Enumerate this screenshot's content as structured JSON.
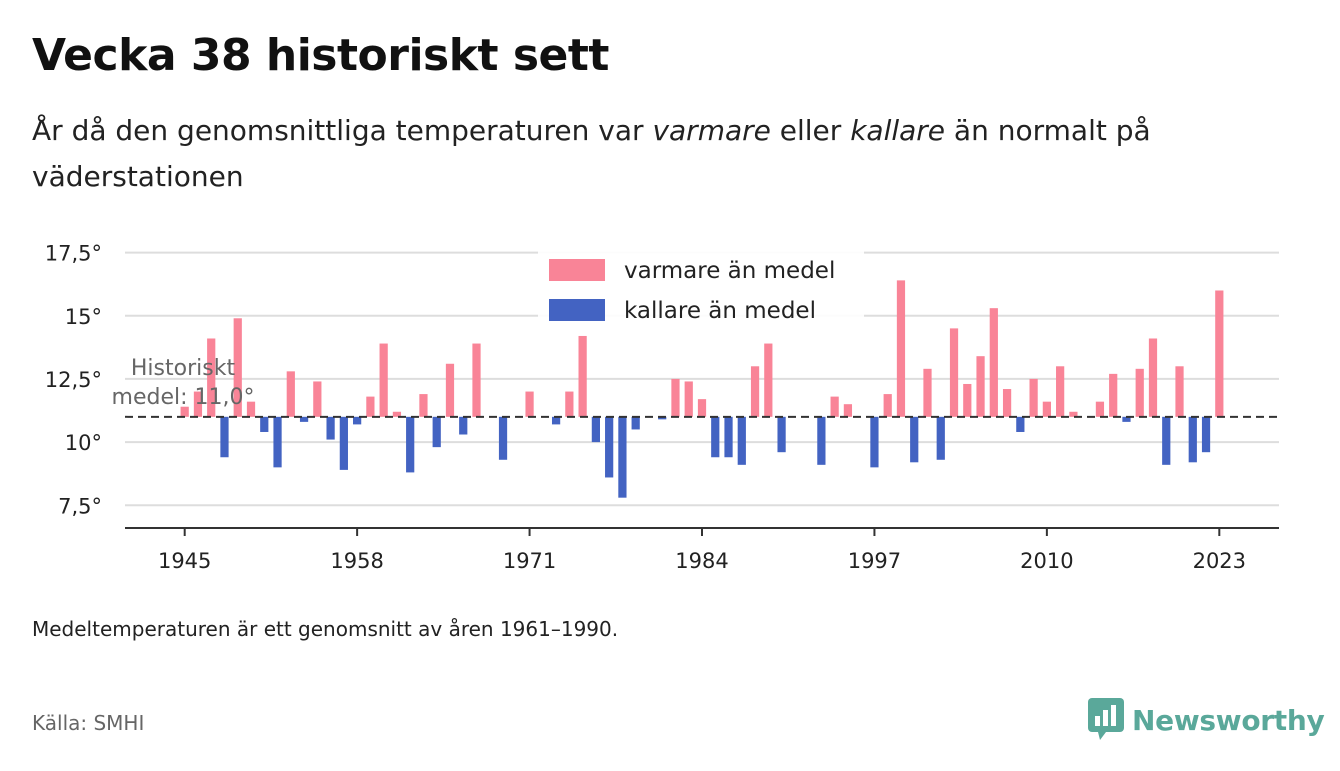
{
  "title": "Vecka 38 historiskt sett",
  "subtitle": {
    "part1": "År då den genomsnittliga temperaturen var ",
    "warm_word": "varmare",
    "part2": " eller ",
    "cold_word": "kallare",
    "part3": " än normalt på väderstationen"
  },
  "note": "Medeltemperaturen är ett genomsnitt av åren 1961–1990.",
  "source": "Källa: SMHI",
  "logo": {
    "text": "Newsworthy",
    "icon": "newsworthy-logo-icon"
  },
  "colors": {
    "warm": "#f98497",
    "cold": "#4363c2",
    "grid": "#dddddd",
    "baseline": "#333333",
    "annotation": "#666666",
    "logo": "#5aa89a"
  },
  "chart_data": {
    "type": "bar",
    "baseline": 11.0,
    "baseline_label_line1": "Historiskt",
    "baseline_label_line2": "medel: 11,0°",
    "ylim": [
      6.6,
      17.8
    ],
    "xlim": [
      1940.5,
      2027.5
    ],
    "y_ticks": [
      7.5,
      10,
      12.5,
      15,
      17.5
    ],
    "y_tick_labels": [
      "7,5°",
      "10°",
      "12,5°",
      "15°",
      "17,5°"
    ],
    "x_ticks": [
      1945,
      1958,
      1971,
      1984,
      1997,
      2010,
      2023
    ],
    "x_tick_labels": [
      "1945",
      "1958",
      "1971",
      "1984",
      "1997",
      "2010",
      "2023"
    ],
    "legend": {
      "placement": "top-center",
      "warm_label": "varmare än medel",
      "cold_label": "kallare än medel"
    },
    "series_names": [
      "varmare än medel",
      "kallare än medel"
    ],
    "years": [
      1945,
      1946,
      1947,
      1948,
      1949,
      1950,
      1951,
      1952,
      1953,
      1954,
      1955,
      1956,
      1957,
      1958,
      1959,
      1960,
      1961,
      1962,
      1963,
      1964,
      1965,
      1966,
      1967,
      1968,
      1969,
      1970,
      1971,
      1972,
      1973,
      1974,
      1975,
      1976,
      1977,
      1978,
      1979,
      1980,
      1981,
      1982,
      1983,
      1984,
      1985,
      1986,
      1987,
      1988,
      1989,
      1990,
      1991,
      1992,
      1993,
      1994,
      1995,
      1996,
      1997,
      1998,
      1999,
      2000,
      2001,
      2002,
      2003,
      2004,
      2005,
      2006,
      2007,
      2008,
      2009,
      2010,
      2011,
      2012,
      2013,
      2014,
      2015,
      2016,
      2017,
      2018,
      2019,
      2020,
      2021,
      2022,
      2023
    ],
    "values": [
      11.4,
      12.0,
      14.1,
      9.4,
      14.9,
      11.6,
      10.4,
      9.0,
      12.8,
      10.8,
      12.4,
      10.1,
      8.9,
      10.7,
      11.8,
      13.9,
      11.2,
      8.8,
      11.9,
      9.8,
      13.1,
      10.3,
      13.9,
      11.0,
      9.3,
      11.0,
      12.0,
      11.0,
      10.7,
      12.0,
      14.2,
      10.0,
      8.6,
      7.8,
      10.5,
      11.0,
      10.9,
      12.5,
      12.4,
      11.7,
      9.4,
      9.4,
      9.1,
      13.0,
      13.9,
      9.6,
      11.0,
      11.0,
      9.1,
      11.8,
      11.5,
      11.0,
      9.0,
      11.9,
      16.4,
      9.2,
      12.9,
      9.3,
      14.5,
      12.3,
      13.4,
      15.3,
      12.1,
      10.4,
      12.5,
      11.6,
      13.0,
      11.2,
      11.0,
      11.6,
      12.7,
      10.8,
      12.9,
      14.1,
      9.1,
      13.0,
      9.2,
      9.6,
      16.0
    ]
  }
}
